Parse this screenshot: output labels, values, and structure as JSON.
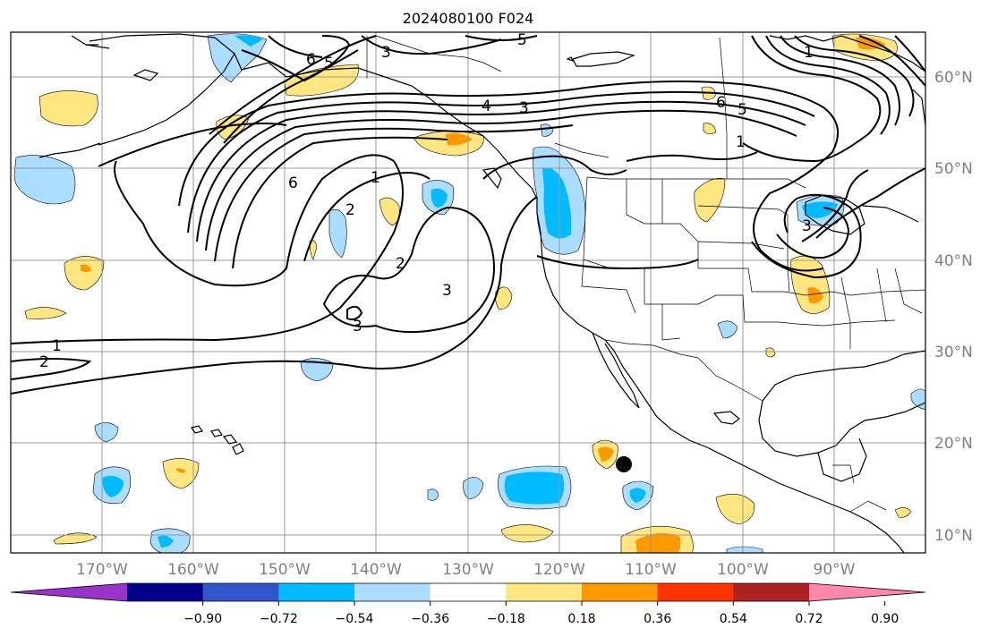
{
  "title": "2024080100 F024",
  "lon_labels": [
    "170°W",
    "160°W",
    "150°W",
    "140°W",
    "130°W",
    "120°W",
    "110°W",
    "100°W",
    "90°W"
  ],
  "lat_labels": [
    "60°N",
    "50°N",
    "40°N",
    "30°N",
    "20°N",
    "10°N"
  ],
  "extent": {
    "lon": [
      -180,
      -80
    ],
    "lat": [
      8,
      65
    ]
  },
  "colorbar": {
    "colors": [
      "#9933cc",
      "#000088",
      "#3355cc",
      "#00bbff",
      "#aaddff",
      "#ffffff",
      "#ffe680",
      "#ff9900",
      "#ff3300",
      "#aa2222",
      "#ff88aa"
    ],
    "tick_labels": [
      "−0.90",
      "−0.72",
      "−0.54",
      "−0.36",
      "−0.18",
      "0.18",
      "0.36",
      "0.54",
      "0.72",
      "0.90"
    ],
    "extend": "both"
  },
  "contour_labels": [
    "1",
    "2",
    "3",
    "4",
    "5",
    "6"
  ],
  "marker": {
    "name": "black dot",
    "lon": -111.8,
    "lat": 18.2
  }
}
